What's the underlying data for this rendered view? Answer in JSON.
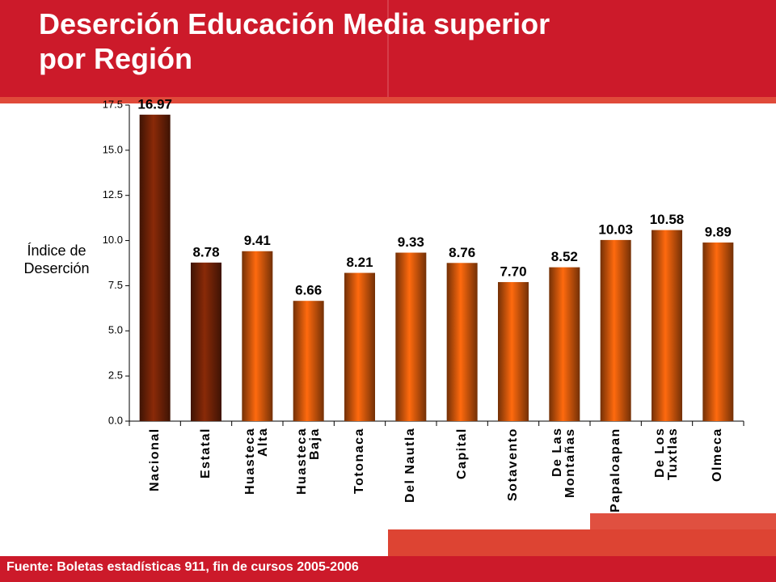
{
  "chart_data": {
    "type": "bar",
    "title": "Deserción Educación Media superior\npor Región",
    "y_label": "Índice de\nDeserción",
    "source": "Fuente: Boletas estadísticas 911, fin de cursos 2005-2006",
    "categories": [
      "Nacional",
      "Estatal",
      "Huasteca\nAlta",
      "Huasteca\nBaja",
      "Totonaca",
      "Del Nautla",
      "Capital",
      "Sotavento",
      "De Las\nMontañas",
      "Papaloapan",
      "De Los\nTuxtlas",
      "Olmeca"
    ],
    "values": [
      16.97,
      8.78,
      9.41,
      6.66,
      8.21,
      9.33,
      8.76,
      7.7,
      8.52,
      10.03,
      10.58,
      9.89
    ],
    "value_labels": [
      "16.97",
      "8.78",
      "9.41",
      "6.66",
      "8.21",
      "9.33",
      "8.76",
      "7.70",
      "8.52",
      "10.03",
      "10.58",
      "9.89"
    ],
    "colors": [
      "#8a2a08",
      "#8a2a08",
      "#ff6a0e",
      "#ff6a0e",
      "#ff6a0e",
      "#ff6a0e",
      "#ff6a0e",
      "#ff6a0e",
      "#ff6a0e",
      "#ff6a0e",
      "#ff6a0e",
      "#ff6a0e"
    ],
    "ylim": [
      0,
      17.5
    ],
    "yticks": [
      {
        "value": 0,
        "label": "0.0"
      },
      {
        "value": 2.5,
        "label": "2.5"
      },
      {
        "value": 5,
        "label": "5.0"
      },
      {
        "value": 7.5,
        "label": "7.5"
      },
      {
        "value": 10,
        "label": "10.0"
      },
      {
        "value": 12.5,
        "label": "12.5"
      },
      {
        "value": 15,
        "label": "15.0"
      },
      {
        "value": 17.5,
        "label": "17.5"
      }
    ]
  }
}
